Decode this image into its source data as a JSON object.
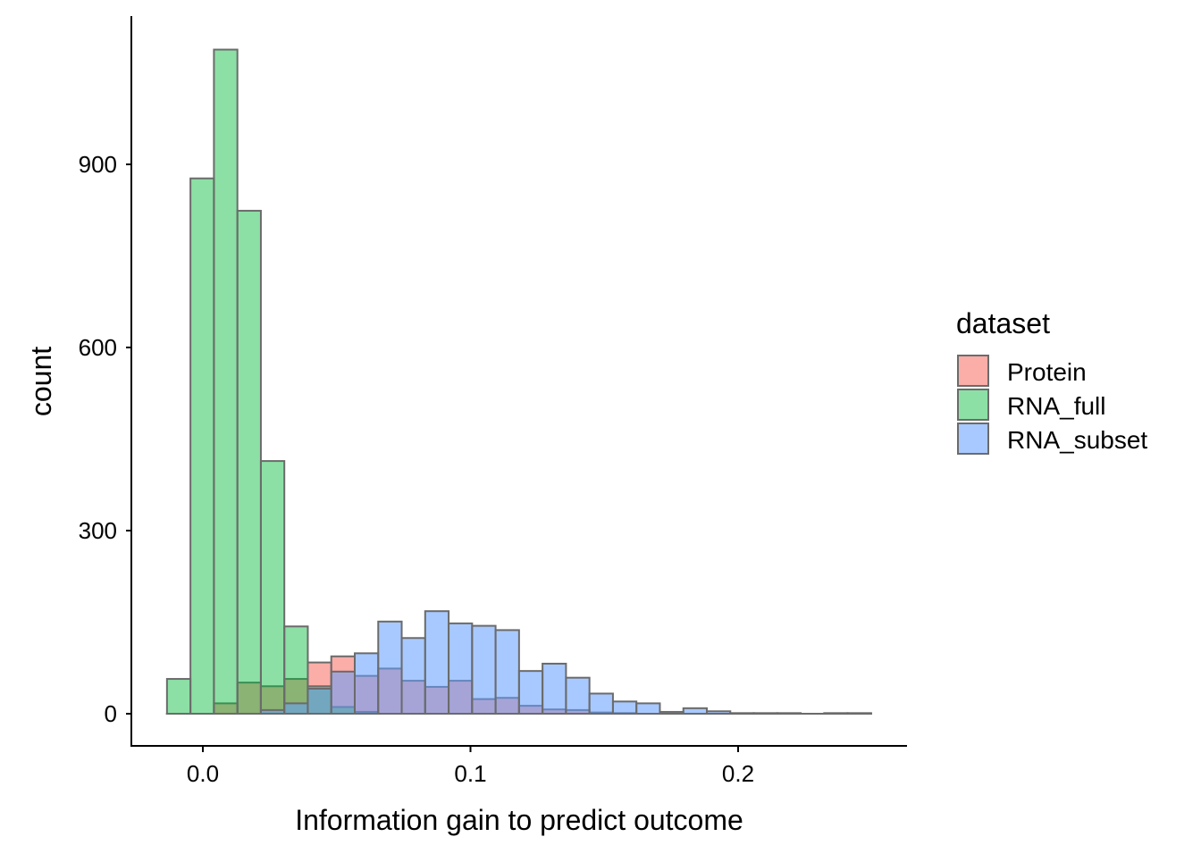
{
  "chart_data": {
    "type": "bar",
    "subtype": "overlapping histogram",
    "title": "",
    "xlabel": "Information gain to predict outcome",
    "ylabel": "count",
    "xlim": [
      -0.0266,
      0.262
    ],
    "ylim": [
      -52,
      1140
    ],
    "x_ticks": [
      0.0,
      0.1,
      0.2
    ],
    "x_tick_labels": [
      "0.0",
      "0.1",
      "0.2"
    ],
    "y_ticks": [
      0,
      300,
      600,
      900
    ],
    "y_tick_labels": [
      "0",
      "300",
      "600",
      "900"
    ],
    "bin_start": -0.0134,
    "bin_width": 0.00877,
    "legend": {
      "title": "dataset",
      "position": "right"
    },
    "series": [
      {
        "name": "Protein",
        "color": "#F8766D",
        "values": [
          0,
          0,
          17,
          51,
          45,
          57,
          84,
          94,
          62,
          74,
          54,
          44,
          54,
          24,
          26,
          13,
          7,
          6,
          2,
          1,
          0,
          0,
          0,
          0,
          0,
          0,
          0,
          0,
          0,
          0
        ]
      },
      {
        "name": "RNA_full",
        "color": "#00BA38",
        "values": [
          57,
          877,
          1088,
          824,
          414,
          143,
          45,
          11,
          3,
          0,
          0,
          0,
          0,
          0,
          0,
          0,
          0,
          0,
          0,
          0,
          0,
          0,
          0,
          0,
          0,
          0,
          0,
          0,
          0,
          0
        ]
      },
      {
        "name": "RNA_subset",
        "color": "#619CFF",
        "values": [
          0,
          0,
          0,
          0,
          6,
          17,
          41,
          69,
          99,
          151,
          124,
          168,
          148,
          144,
          137,
          70,
          82,
          59,
          33,
          20,
          17,
          3,
          9,
          4,
          1,
          1,
          1,
          0,
          1,
          1
        ]
      }
    ]
  }
}
